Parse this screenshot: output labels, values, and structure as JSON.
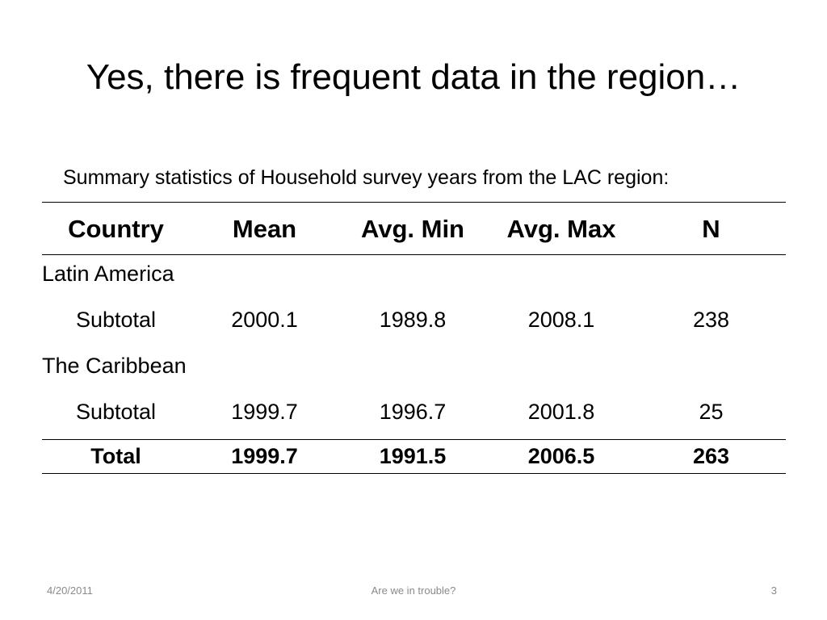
{
  "slide": {
    "title": "Yes, there is frequent data in the region…",
    "subtitle": "Summary statistics of Household survey years from the LAC region:"
  },
  "table": {
    "headers": [
      "Country",
      "Mean",
      "Avg. Min",
      "Avg. Max",
      "N"
    ],
    "groups": [
      {
        "label": "Latin America",
        "row": [
          "Subtotal",
          "2000.1",
          "1989.8",
          "2008.1",
          "238"
        ]
      },
      {
        "label": "The Caribbean",
        "row": [
          "Subtotal",
          "1999.7",
          "1996.7",
          "2001.8",
          "25"
        ]
      }
    ],
    "total": [
      "Total",
      "1999.7",
      "1991.5",
      "2006.5",
      "263"
    ]
  },
  "footer": {
    "date": "4/20/2011",
    "title": "Are we in trouble?",
    "page": "3"
  }
}
